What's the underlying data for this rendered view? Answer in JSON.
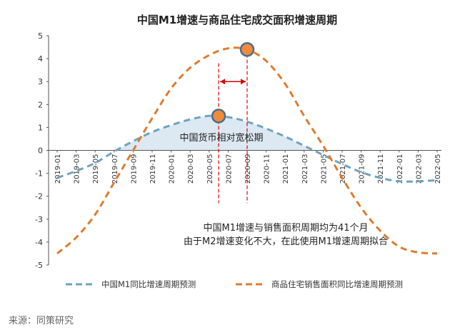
{
  "chart_data": {
    "type": "line",
    "title": "中国M1增速与商品住宅成交面积增速周期",
    "categories": [
      "2019-01",
      "2019-03",
      "2019-05",
      "2019-07",
      "2019-09",
      "2019-11",
      "2020-01",
      "2020-03",
      "2020-05",
      "2020-07",
      "2020-09",
      "2020-11",
      "2021-01",
      "2021-03",
      "2021-05",
      "2021-07",
      "2021-09",
      "2021-11",
      "2022-01",
      "2022-03",
      "2022-05"
    ],
    "y_ticks": [
      "5",
      "4",
      "3",
      "2",
      "1",
      "0",
      "-1",
      "-2",
      "-3",
      "-4",
      "-5"
    ],
    "ylim": [
      -5,
      5
    ],
    "grid": false,
    "legend_position": "bottom",
    "series": [
      {
        "name": "中国M1同比增速周期预测",
        "color": "#6fa3bf",
        "style": "dashed",
        "values": [
          -1.2,
          -0.9,
          -0.55,
          -0.05,
          0.4,
          0.8,
          1.1,
          1.35,
          1.5,
          1.45,
          1.25,
          0.95,
          0.6,
          0.2,
          -0.2,
          -0.6,
          -0.95,
          -1.2,
          -1.35,
          -1.35,
          -1.3
        ],
        "peak": {
          "category": "2020-06",
          "value": 1.5
        }
      },
      {
        "name": "商品住宅销售面积同比增速周期预测",
        "color": "#e07b2e",
        "style": "dashed",
        "values": [
          -4.5,
          -3.8,
          -2.8,
          -1.4,
          0.0,
          1.4,
          2.7,
          3.6,
          4.15,
          4.45,
          4.4,
          3.9,
          2.9,
          1.5,
          0.2,
          -1.2,
          -2.5,
          -3.5,
          -4.2,
          -4.45,
          -4.5
        ],
        "peak": {
          "category": "2020-09",
          "value": 4.4
        }
      }
    ],
    "annotations": {
      "shaded_region_label": "中国货币相对宽松期",
      "note_line1": "中国M1增速与销售面积周期均为41个月",
      "note_line2": "由于M2增速变化不大，在此使用M1增速周期拟合"
    },
    "colors": {
      "shade": "#dce9f2",
      "marker_fill": "#f08a3c",
      "marker_stroke": "#4a6d8c",
      "marker_line": "#e00000",
      "axis": "#555555"
    }
  },
  "source_text": "来源：同策研究"
}
